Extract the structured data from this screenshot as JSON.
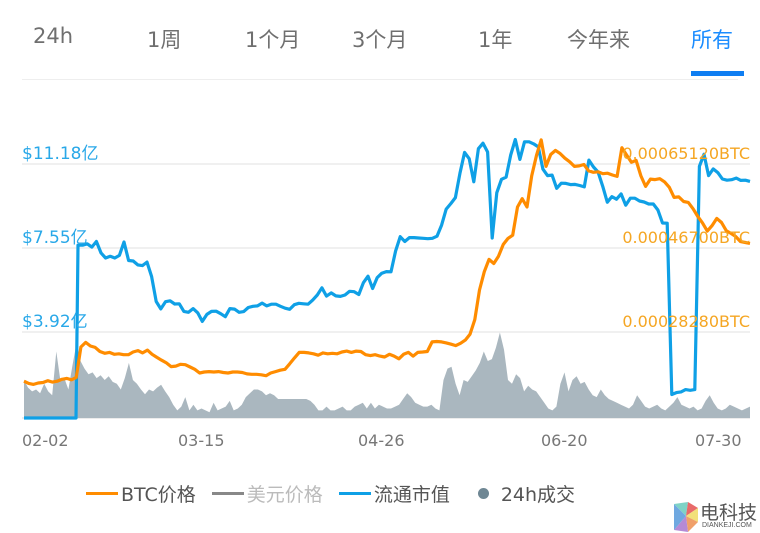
{
  "tabs": {
    "items": [
      {
        "label": "24h",
        "active": false
      },
      {
        "label": "1周",
        "active": false
      },
      {
        "label": "1个月",
        "active": false
      },
      {
        "label": "3个月",
        "active": false
      },
      {
        "label": "1年",
        "active": false
      },
      {
        "label": "今年来",
        "active": false
      },
      {
        "label": "所有",
        "active": true
      }
    ],
    "active_color": "#0f7ef2"
  },
  "colors": {
    "btc_price": "#ff8c00",
    "usd_price": "#888888",
    "market_cap": "#0fa0e6",
    "volume": "#aab7bf",
    "left_axis_text": "#29a8e8",
    "right_axis_text": "#f5a623"
  },
  "chart_data": {
    "type": "line",
    "title": "",
    "xlabel": "",
    "ylabel": "",
    "x_ticks": [
      "02-02",
      "03-15",
      "04-26",
      "06-20",
      "07-30"
    ],
    "left_axis": {
      "labels": [
        "$11.18亿",
        "$7.55亿",
        "$3.92亿"
      ],
      "values_yi": [
        11.18,
        7.55,
        3.92
      ]
    },
    "right_axis": {
      "labels": [
        "0.00065120BTC",
        "0.00046700BTC",
        "0.00028280BTC"
      ],
      "values_btc": [
        0.0006512,
        0.000467,
        0.0002828
      ]
    },
    "grid": true,
    "legend_position": "bottom",
    "series": [
      {
        "name": "BTC价格",
        "axis": "right",
        "values_btc": [
          0.000175,
          0.00017,
          0.000168,
          0.000171,
          0.000172,
          0.000176,
          0.000173,
          0.000175,
          0.000179,
          0.000181,
          0.000178,
          0.000183,
          0.00025,
          0.00026,
          0.000252,
          0.000249,
          0.00024,
          0.000236,
          0.000238,
          0.000234,
          0.000235,
          0.000233,
          0.000233,
          0.000239,
          0.000242,
          0.000237,
          0.000243,
          0.000234,
          0.000227,
          0.000221,
          0.000215,
          0.000207,
          0.000208,
          0.000212,
          0.000211,
          0.000206,
          0.000201,
          0.000193,
          0.000195,
          0.000196,
          0.000195,
          0.000196,
          0.000194,
          0.000193,
          0.000195,
          0.000195,
          0.000194,
          0.000191,
          0.00019,
          0.00019,
          0.000189,
          0.000187,
          0.000193,
          0.000196,
          0.000199,
          0.000201,
          0.000213,
          0.000226,
          0.000238,
          0.000238,
          0.000237,
          0.000235,
          0.000232,
          0.000237,
          0.000235,
          0.000236,
          0.000235,
          0.000239,
          0.000241,
          0.000238,
          0.000241,
          0.00024,
          0.000233,
          0.000231,
          0.000233,
          0.00023,
          0.000228,
          0.000234,
          0.00023,
          0.000224,
          0.000234,
          0.000238,
          0.00023,
          0.000238,
          0.000239,
          0.00024,
          0.000261,
          0.000262,
          0.000261,
          0.000259,
          0.000256,
          0.000253,
          0.000258,
          0.000265,
          0.000278,
          0.00031,
          0.000375,
          0.000415,
          0.000442,
          0.000433,
          0.000449,
          0.000475,
          0.000488,
          0.000495,
          0.000557,
          0.000575,
          0.000557,
          0.000625,
          0.00067,
          0.000704,
          0.000646,
          0.000672,
          0.000681,
          0.000674,
          0.000664,
          0.000656,
          0.000646,
          0.000647,
          0.00065,
          0.000636,
          0.000633,
          0.000634,
          0.00063,
          0.000631,
          0.000627,
          0.000624,
          0.000687,
          0.000671,
          0.000655,
          0.000659,
          0.000625,
          0.000602,
          0.000618,
          0.000617,
          0.000619,
          0.000612,
          0.0006,
          0.000578,
          0.000579,
          0.000569,
          0.000567,
          0.000553,
          0.000536,
          0.000522,
          0.000504,
          0.000516,
          0.000532,
          0.000523,
          0.000505,
          0.000499,
          0.000492,
          0.000481,
          0.000479,
          0.000477
        ],
        "description": "approx. values read from chart, ~150 points from 02-02 to 07-30"
      },
      {
        "name": "美元价格",
        "axis": "none",
        "values": [],
        "description": "legend entry only; series disabled (grayed legend text)"
      },
      {
        "name": "流通市值",
        "axis": "left",
        "values_yi": [
          0.0,
          0.0,
          0.0,
          0.0,
          0.0,
          0.0,
          0.0,
          0.0,
          0.0,
          0.0,
          0.0,
          0.0,
          7.67,
          7.67,
          7.73,
          7.59,
          7.83,
          7.34,
          7.12,
          7.19,
          7.12,
          7.23,
          7.81,
          7.01,
          6.99,
          6.82,
          6.79,
          6.94,
          6.32,
          5.24,
          4.92,
          5.23,
          5.27,
          5.13,
          5.14,
          4.81,
          4.77,
          4.93,
          4.75,
          4.38,
          4.68,
          4.81,
          4.82,
          4.71,
          4.58,
          4.93,
          4.91,
          4.77,
          4.8,
          4.98,
          5.03,
          5.05,
          5.17,
          5.05,
          5.12,
          5.12,
          5.03,
          4.95,
          4.9,
          5.1,
          5.16,
          5.14,
          5.12,
          5.3,
          5.52,
          5.83,
          5.47,
          5.61,
          5.48,
          5.46,
          5.52,
          5.68,
          5.66,
          5.54,
          6.05,
          6.33,
          5.8,
          6.27,
          6.46,
          6.53,
          6.52,
          7.42,
          8.04,
          7.83,
          8.0,
          8.0,
          7.98,
          7.97,
          7.95,
          7.97,
          8.06,
          8.54,
          9.23,
          9.47,
          9.73,
          10.79,
          11.68,
          11.41,
          10.41,
          11.84,
          12.08,
          11.7,
          7.98,
          9.94,
          10.52,
          10.61,
          11.57,
          12.24,
          11.38,
          12.14,
          12.14,
          12.05,
          11.92,
          10.96,
          10.68,
          10.7,
          10.13,
          10.35,
          10.34,
          10.29,
          10.3,
          10.25,
          10.19,
          11.35,
          11.05,
          10.83,
          10.22,
          9.53,
          9.77,
          9.66,
          9.89,
          9.4,
          9.7,
          9.7,
          9.58,
          9.54,
          9.45,
          9.45,
          9.19,
          8.63,
          8.62,
          1.22,
          1.3,
          1.33,
          1.43,
          1.4,
          1.43,
          11.08,
          11.6,
          10.68,
          10.97,
          10.81,
          10.53,
          10.48,
          10.5,
          10.57,
          10.47,
          10.48,
          10.43
        ],
        "description": "approx. values in 亿 USD read from chart; starts at 0 before ~02-08, dip ~07-18 to 07-25"
      },
      {
        "name": "24h成交",
        "axis": "hidden",
        "type": "area",
        "description": "gray area series at bottom of plot; relative heights only (no scale shown)"
      }
    ]
  },
  "legend": {
    "items": [
      {
        "label": "BTC价格",
        "marker": "line",
        "color": "#ff8c00",
        "text_color": "#555555"
      },
      {
        "label": "美元价格",
        "marker": "line",
        "color": "#888888",
        "text_color": "#bbbbbb"
      },
      {
        "label": "流通市值",
        "marker": "line",
        "color": "#0fa0e6",
        "text_color": "#555555"
      },
      {
        "label": "24h成交",
        "marker": "dot",
        "color": "#6f8794",
        "text_color": "#555555"
      }
    ]
  },
  "watermark": {
    "text": "电科技",
    "sub": "DIANKEJI.COM"
  }
}
